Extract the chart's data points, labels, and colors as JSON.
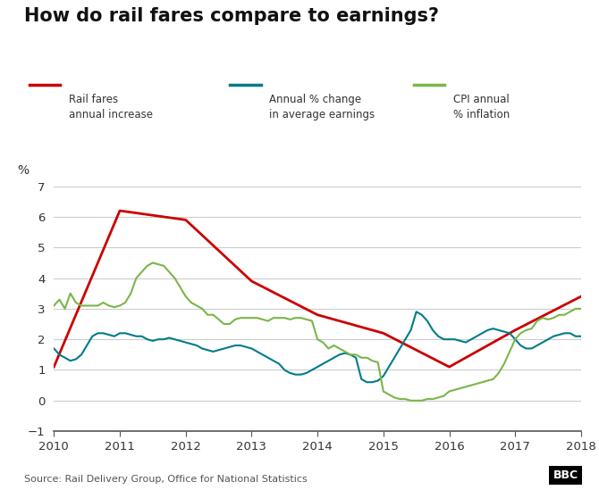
{
  "title": "How do rail fares compare to earnings?",
  "source": "Source: Rail Delivery Group, Office for National Statistics",
  "ylabel": "%",
  "ylim": [
    -1,
    7
  ],
  "yticks": [
    -1,
    0,
    1,
    2,
    3,
    4,
    5,
    6,
    7
  ],
  "xlim": [
    2010,
    2018
  ],
  "xticks": [
    2010,
    2011,
    2012,
    2013,
    2014,
    2015,
    2016,
    2017,
    2018
  ],
  "background_color": "#ffffff",
  "grid_color": "#cccccc",
  "rail_fares_color": "#cc0000",
  "earnings_color": "#007b8a",
  "cpi_color": "#7ab648",
  "legend_labels": [
    "Rail fares\nannual increase",
    "Annual % change\nin average earnings",
    "CPI annual\n% inflation"
  ],
  "rail_fares_x": [
    2010.0,
    2011.0,
    2012.0,
    2013.0,
    2014.0,
    2015.0,
    2016.0,
    2017.0,
    2018.0
  ],
  "rail_fares_y": [
    1.1,
    6.2,
    5.9,
    3.9,
    2.8,
    2.2,
    1.1,
    2.3,
    3.4
  ],
  "earnings_x": [
    2010.0,
    2010.083,
    2010.167,
    2010.25,
    2010.333,
    2010.417,
    2010.5,
    2010.583,
    2010.667,
    2010.75,
    2010.833,
    2010.917,
    2011.0,
    2011.083,
    2011.167,
    2011.25,
    2011.333,
    2011.417,
    2011.5,
    2011.583,
    2011.667,
    2011.75,
    2011.833,
    2011.917,
    2012.0,
    2012.083,
    2012.167,
    2012.25,
    2012.333,
    2012.417,
    2012.5,
    2012.583,
    2012.667,
    2012.75,
    2012.833,
    2012.917,
    2013.0,
    2013.083,
    2013.167,
    2013.25,
    2013.333,
    2013.417,
    2013.5,
    2013.583,
    2013.667,
    2013.75,
    2013.833,
    2013.917,
    2014.0,
    2014.083,
    2014.167,
    2014.25,
    2014.333,
    2014.417,
    2014.5,
    2014.583,
    2014.667,
    2014.75,
    2014.833,
    2014.917,
    2015.0,
    2015.083,
    2015.167,
    2015.25,
    2015.333,
    2015.417,
    2015.5,
    2015.583,
    2015.667,
    2015.75,
    2015.833,
    2015.917,
    2016.0,
    2016.083,
    2016.167,
    2016.25,
    2016.333,
    2016.417,
    2016.5,
    2016.583,
    2016.667,
    2016.75,
    2016.833,
    2016.917,
    2017.0,
    2017.083,
    2017.167,
    2017.25,
    2017.333,
    2017.417,
    2017.5,
    2017.583,
    2017.667,
    2017.75,
    2017.833,
    2017.917,
    2018.0
  ],
  "earnings_y": [
    1.7,
    1.5,
    1.4,
    1.3,
    1.35,
    1.5,
    1.8,
    2.1,
    2.2,
    2.2,
    2.15,
    2.1,
    2.2,
    2.2,
    2.15,
    2.1,
    2.1,
    2.0,
    1.95,
    2.0,
    2.0,
    2.05,
    2.0,
    1.95,
    1.9,
    1.85,
    1.8,
    1.7,
    1.65,
    1.6,
    1.65,
    1.7,
    1.75,
    1.8,
    1.8,
    1.75,
    1.7,
    1.6,
    1.5,
    1.4,
    1.3,
    1.2,
    1.0,
    0.9,
    0.85,
    0.85,
    0.9,
    1.0,
    1.1,
    1.2,
    1.3,
    1.4,
    1.5,
    1.55,
    1.5,
    1.4,
    0.7,
    0.6,
    0.6,
    0.65,
    0.8,
    1.1,
    1.4,
    1.7,
    2.0,
    2.3,
    2.9,
    2.8,
    2.6,
    2.3,
    2.1,
    2.0,
    2.0,
    2.0,
    1.95,
    1.9,
    2.0,
    2.1,
    2.2,
    2.3,
    2.35,
    2.3,
    2.25,
    2.2,
    2.0,
    1.8,
    1.7,
    1.7,
    1.8,
    1.9,
    2.0,
    2.1,
    2.15,
    2.2,
    2.2,
    2.1,
    2.1
  ],
  "cpi_x": [
    2010.0,
    2010.083,
    2010.167,
    2010.25,
    2010.333,
    2010.417,
    2010.5,
    2010.583,
    2010.667,
    2010.75,
    2010.833,
    2010.917,
    2011.0,
    2011.083,
    2011.167,
    2011.25,
    2011.333,
    2011.417,
    2011.5,
    2011.583,
    2011.667,
    2011.75,
    2011.833,
    2011.917,
    2012.0,
    2012.083,
    2012.167,
    2012.25,
    2012.333,
    2012.417,
    2012.5,
    2012.583,
    2012.667,
    2012.75,
    2012.833,
    2012.917,
    2013.0,
    2013.083,
    2013.167,
    2013.25,
    2013.333,
    2013.417,
    2013.5,
    2013.583,
    2013.667,
    2013.75,
    2013.833,
    2013.917,
    2014.0,
    2014.083,
    2014.167,
    2014.25,
    2014.333,
    2014.417,
    2014.5,
    2014.583,
    2014.667,
    2014.75,
    2014.833,
    2014.917,
    2015.0,
    2015.083,
    2015.167,
    2015.25,
    2015.333,
    2015.417,
    2015.5,
    2015.583,
    2015.667,
    2015.75,
    2015.833,
    2015.917,
    2016.0,
    2016.083,
    2016.167,
    2016.25,
    2016.333,
    2016.417,
    2016.5,
    2016.583,
    2016.667,
    2016.75,
    2016.833,
    2016.917,
    2017.0,
    2017.083,
    2017.167,
    2017.25,
    2017.333,
    2017.417,
    2017.5,
    2017.583,
    2017.667,
    2017.75,
    2017.833,
    2017.917,
    2018.0
  ],
  "cpi_y": [
    3.1,
    3.3,
    3.0,
    3.5,
    3.2,
    3.1,
    3.1,
    3.1,
    3.1,
    3.2,
    3.1,
    3.05,
    3.1,
    3.2,
    3.5,
    4.0,
    4.2,
    4.4,
    4.5,
    4.45,
    4.4,
    4.2,
    4.0,
    3.7,
    3.4,
    3.2,
    3.1,
    3.0,
    2.8,
    2.8,
    2.65,
    2.5,
    2.5,
    2.65,
    2.7,
    2.7,
    2.7,
    2.7,
    2.65,
    2.6,
    2.7,
    2.7,
    2.7,
    2.65,
    2.7,
    2.7,
    2.65,
    2.6,
    2.0,
    1.9,
    1.7,
    1.8,
    1.7,
    1.6,
    1.5,
    1.5,
    1.4,
    1.4,
    1.3,
    1.25,
    0.3,
    0.2,
    0.1,
    0.05,
    0.05,
    0.0,
    0.0,
    0.0,
    0.05,
    0.05,
    0.1,
    0.15,
    0.3,
    0.35,
    0.4,
    0.45,
    0.5,
    0.55,
    0.6,
    0.65,
    0.7,
    0.9,
    1.2,
    1.6,
    2.0,
    2.2,
    2.3,
    2.35,
    2.6,
    2.7,
    2.65,
    2.7,
    2.8,
    2.8,
    2.9,
    3.0,
    3.0
  ],
  "bbc_box_color": "#000000",
  "bbc_text_color": "#ffffff",
  "source_color": "#555555",
  "title_color": "#111111"
}
